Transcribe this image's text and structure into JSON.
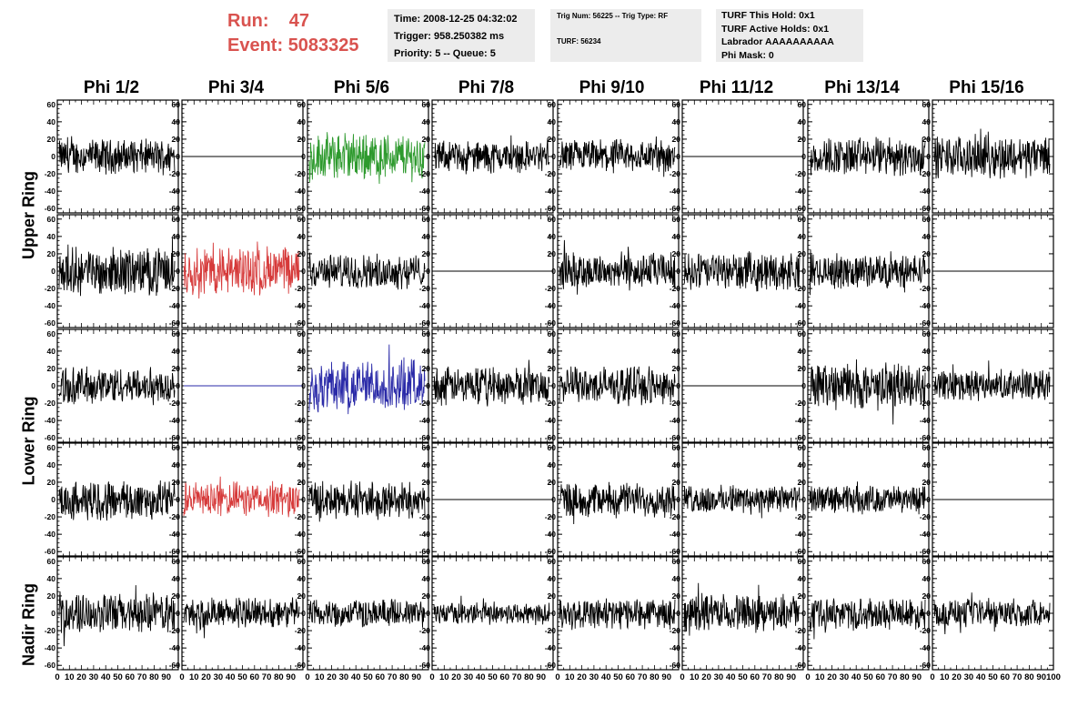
{
  "run": {
    "run_label": "Run:",
    "run_value": "47",
    "event_label": "Event:",
    "event_value": "5083325",
    "color": "#d9534f"
  },
  "time_box": {
    "time": "Time: 2008-12-25 04:32:02",
    "trigger": "Trigger: 958.250382 ms",
    "priority": "Priority: 5 -- Queue: 5"
  },
  "trig_box": {
    "trig": "Trig Num: 56225 -- Trig Type: RF",
    "turf": "TURF: 56234"
  },
  "turf_box": {
    "this_hold": "TURF This Hold: 0x1",
    "active_holds": "TURF Active Holds: 0x1",
    "labrador": "Labrador AAAAAAAAAA",
    "phi_mask": "Phi Mask: 0"
  },
  "columns": [
    "Phi 1/2",
    "Phi 3/4",
    "Phi 5/6",
    "Phi 7/8",
    "Phi 9/10",
    "Phi 11/12",
    "Phi 13/14",
    "Phi 15/16"
  ],
  "ring_labels": {
    "upper": "Upper Ring",
    "lower": "Lower Ring",
    "nadir": "Nadir Ring"
  },
  "chart_data": {
    "type": "line",
    "layout": "grid of 5 rows x 8 columns of waveform panels",
    "ylim": [
      -65,
      65
    ],
    "y_ticks": [
      -60,
      -40,
      -20,
      0,
      20,
      40,
      60
    ],
    "xlim": [
      0,
      100
    ],
    "x_tick_labels": [
      "0",
      "10",
      "20",
      "30",
      "40",
      "50",
      "60",
      "70",
      "80",
      "90",
      "100"
    ],
    "colors": {
      "default": "#000000",
      "green": "#2e9a2e",
      "red": "#d63a3a",
      "blue": "#2a2aa8"
    },
    "panel_state_legend": "flat = channel shows a constant 0 trace; amp = approximate peak amplitude of noise trace",
    "panels": [
      [
        {
          "color": "default",
          "amp": 22
        },
        {
          "color": "default",
          "flat": true
        },
        {
          "color": "green",
          "amp": 30
        },
        {
          "color": "default",
          "amp": 20
        },
        {
          "color": "default",
          "amp": 22
        },
        {
          "color": "default",
          "flat": true
        },
        {
          "color": "default",
          "amp": 25
        },
        {
          "color": "default",
          "amp": 27
        }
      ],
      [
        {
          "color": "default",
          "amp": 30
        },
        {
          "color": "red",
          "amp": 32
        },
        {
          "color": "default",
          "amp": 22
        },
        {
          "color": "default",
          "flat": true
        },
        {
          "color": "default",
          "amp": 24
        },
        {
          "color": "default",
          "amp": 24
        },
        {
          "color": "default",
          "amp": 22
        },
        {
          "color": "default",
          "flat": true
        }
      ],
      [
        {
          "color": "default",
          "amp": 24
        },
        {
          "color": "blue",
          "flat": true
        },
        {
          "color": "blue",
          "amp": 33
        },
        {
          "color": "default",
          "amp": 24
        },
        {
          "color": "default",
          "amp": 24
        },
        {
          "color": "default",
          "flat": true
        },
        {
          "color": "default",
          "amp": 30
        },
        {
          "color": "default",
          "amp": 20
        }
      ],
      [
        {
          "color": "default",
          "amp": 26
        },
        {
          "color": "red",
          "amp": 22
        },
        {
          "color": "default",
          "amp": 24
        },
        {
          "color": "default",
          "flat": true
        },
        {
          "color": "default",
          "amp": 22
        },
        {
          "color": "default",
          "amp": 18
        },
        {
          "color": "default",
          "amp": 18
        },
        {
          "color": "default",
          "flat": true
        }
      ],
      [
        {
          "color": "default",
          "amp": 26
        },
        {
          "color": "default",
          "amp": 20
        },
        {
          "color": "default",
          "amp": 18
        },
        {
          "color": "default",
          "amp": 14
        },
        {
          "color": "default",
          "amp": 20
        },
        {
          "color": "default",
          "amp": 24
        },
        {
          "color": "default",
          "amp": 20
        },
        {
          "color": "default",
          "amp": 18
        }
      ]
    ]
  }
}
